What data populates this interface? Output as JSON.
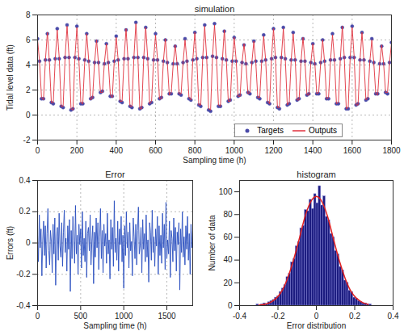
{
  "chart_data": [
    {
      "type": "line",
      "title": "simulation",
      "x_label": "Sampling time (h)",
      "y_label": "Tidal level data (ft)",
      "x": [
        0,
        10,
        20,
        30,
        40,
        50,
        60,
        70,
        80,
        90,
        100,
        110,
        120,
        130,
        140,
        150,
        160,
        170,
        180,
        190,
        200,
        210,
        220,
        230,
        240,
        250,
        260,
        270,
        280,
        290,
        300,
        310,
        320,
        330,
        340,
        350,
        360,
        370,
        380,
        390,
        400,
        410,
        420,
        430,
        440,
        450,
        460,
        470,
        480,
        490,
        500,
        510,
        520,
        530,
        540,
        550,
        560,
        570,
        580,
        590,
        600,
        610,
        620,
        630,
        640,
        650,
        660,
        670,
        680,
        690,
        700,
        710,
        720,
        730,
        740,
        750,
        760,
        770,
        780,
        790,
        800,
        810,
        820,
        830,
        840,
        850,
        860,
        870,
        880,
        890,
        900,
        910,
        920,
        930,
        940,
        950,
        960,
        970,
        980,
        990,
        1000,
        1010,
        1020,
        1030,
        1040,
        1050,
        1060,
        1070,
        1080,
        1090,
        1100,
        1110,
        1120,
        1130,
        1140,
        1150,
        1160,
        1170,
        1180,
        1190,
        1200,
        1210,
        1220,
        1230,
        1240,
        1250,
        1260,
        1270,
        1280,
        1290,
        1300,
        1310,
        1320,
        1330,
        1340,
        1350,
        1360,
        1370,
        1380,
        1390,
        1400,
        1410,
        1420,
        1430,
        1440,
        1450,
        1460,
        1470,
        1480,
        1490,
        1500,
        1510,
        1520,
        1530,
        1540,
        1550,
        1560,
        1570,
        1580,
        1590,
        1600,
        1610,
        1620,
        1630,
        1640,
        1650,
        1660,
        1670,
        1680,
        1690,
        1700,
        1710,
        1720,
        1730,
        1740,
        1750,
        1760,
        1770,
        1780,
        1790,
        1800
      ],
      "series": [
        {
          "name": "Targets",
          "type": "scatter",
          "marker": "circle",
          "color": "#4a4aa8",
          "values": [
            6.1,
            4.3,
            1.3,
            1.3,
            4.4,
            6.5,
            4.4,
            1.0,
            0.9,
            4.5,
            6.9,
            4.5,
            0.7,
            0.6,
            4.6,
            7.2,
            4.6,
            0.4,
            0.5,
            4.6,
            7.1,
            4.5,
            0.9,
            0.9,
            4.4,
            6.5,
            4.3,
            1.3,
            1.4,
            4.2,
            5.9,
            4.2,
            1.8,
            1.9,
            4.1,
            5.7,
            4.2,
            1.5,
            1.5,
            4.3,
            6.3,
            4.4,
            1.1,
            1.0,
            4.5,
            6.8,
            4.5,
            0.7,
            0.6,
            4.6,
            7.4,
            4.6,
            0.5,
            0.6,
            4.6,
            7.0,
            4.5,
            0.9,
            1.0,
            4.4,
            6.5,
            4.4,
            1.3,
            1.4,
            4.3,
            6.0,
            4.2,
            1.7,
            1.7,
            4.1,
            5.5,
            4.1,
            1.7,
            1.6,
            4.2,
            6.1,
            4.3,
            1.3,
            1.2,
            4.4,
            6.6,
            4.5,
            0.8,
            0.7,
            4.6,
            7.2,
            4.6,
            0.4,
            0.3,
            4.7,
            7.3,
            4.6,
            0.7,
            0.7,
            4.5,
            6.7,
            4.4,
            1.1,
            1.2,
            4.3,
            6.2,
            4.3,
            1.5,
            1.6,
            4.2,
            5.6,
            4.1,
            1.8,
            1.7,
            4.2,
            5.9,
            4.3,
            1.4,
            1.3,
            4.3,
            6.4,
            4.4,
            1.0,
            0.9,
            4.5,
            6.9,
            4.6,
            0.6,
            0.5,
            4.6,
            7.0,
            4.5,
            0.8,
            0.9,
            4.4,
            6.6,
            4.4,
            1.2,
            1.3,
            4.3,
            6.1,
            4.3,
            1.6,
            1.7,
            4.2,
            5.7,
            4.1,
            1.7,
            1.7,
            4.2,
            6.0,
            4.3,
            1.3,
            1.3,
            4.4,
            6.5,
            4.4,
            0.9,
            0.9,
            4.5,
            7.0,
            4.6,
            0.5,
            0.5,
            4.6,
            7.1,
            4.6,
            0.8,
            0.9,
            4.4,
            6.6,
            4.4,
            1.2,
            1.3,
            4.3,
            6.1,
            4.2,
            1.7,
            1.7,
            4.1,
            5.5,
            4.1,
            1.8,
            1.7,
            4.2,
            5.8
          ]
        },
        {
          "name": "Outputs",
          "type": "line",
          "line_style": "solid",
          "color": "#e0303c",
          "values": [
            6.0,
            4.3,
            1.4,
            1.2,
            4.4,
            6.6,
            4.3,
            1.0,
            1.0,
            4.5,
            6.8,
            4.6,
            0.7,
            0.7,
            4.6,
            7.1,
            4.7,
            0.5,
            0.4,
            4.6,
            7.0,
            4.5,
            1.0,
            0.9,
            4.3,
            6.5,
            4.4,
            1.2,
            1.4,
            4.2,
            6.0,
            4.1,
            1.8,
            1.8,
            4.2,
            5.7,
            4.2,
            1.6,
            1.4,
            4.3,
            6.2,
            4.4,
            1.1,
            1.1,
            4.5,
            6.9,
            4.4,
            0.7,
            0.7,
            4.6,
            7.3,
            4.7,
            0.5,
            0.5,
            4.6,
            7.0,
            4.6,
            0.9,
            1.1,
            4.4,
            6.4,
            4.5,
            1.3,
            1.3,
            4.3,
            6.1,
            4.2,
            1.6,
            1.8,
            4.1,
            5.6,
            4.0,
            1.7,
            1.7,
            4.2,
            6.0,
            4.3,
            1.4,
            1.2,
            4.5,
            6.6,
            4.4,
            0.8,
            0.8,
            4.6,
            7.1,
            4.6,
            0.5,
            0.4,
            4.7,
            7.2,
            4.6,
            0.8,
            0.7,
            4.4,
            6.8,
            4.4,
            1.1,
            1.1,
            4.3,
            6.2,
            4.4,
            1.5,
            1.5,
            4.2,
            5.7,
            4.1,
            1.7,
            1.8,
            4.2,
            5.9,
            4.2,
            1.4,
            1.4,
            4.3,
            6.3,
            4.4,
            1.1,
            0.9,
            4.6,
            6.9,
            4.5,
            0.6,
            0.6,
            4.6,
            6.9,
            4.5,
            0.8,
            1.0,
            4.4,
            6.5,
            4.5,
            1.2,
            1.2,
            4.3,
            6.2,
            4.3,
            1.6,
            1.6,
            4.2,
            5.7,
            4.2,
            1.7,
            1.8,
            4.2,
            6.0,
            4.2,
            1.3,
            1.4,
            4.4,
            6.4,
            4.5,
            0.9,
            1.0,
            4.5,
            7.1,
            4.6,
            0.5,
            0.6,
            4.6,
            7.0,
            4.7,
            0.8,
            0.8,
            4.4,
            6.6,
            4.3,
            1.2,
            1.4,
            4.3,
            6.0,
            4.2,
            1.7,
            1.6,
            4.1,
            5.6,
            4.1,
            1.8,
            1.8,
            4.2,
            5.7
          ]
        }
      ],
      "xlim": [
        0,
        1800
      ],
      "xticks": [
        0,
        200,
        400,
        600,
        800,
        1000,
        1200,
        1400,
        1600,
        1800
      ],
      "ylim": [
        -2,
        8
      ],
      "yticks": [
        -2,
        0,
        2,
        4,
        6,
        8
      ],
      "grid": true,
      "legend": "lower right"
    },
    {
      "type": "line",
      "title": "Error",
      "x_label": "Sampling time (h)",
      "y_label": "Errors (ft)",
      "x": [
        0,
        10,
        20,
        30,
        40,
        50,
        60,
        70,
        80,
        90,
        100,
        110,
        120,
        130,
        140,
        150,
        160,
        170,
        180,
        190,
        200,
        210,
        220,
        230,
        240,
        250,
        260,
        270,
        280,
        290,
        300,
        310,
        320,
        330,
        340,
        350,
        360,
        370,
        380,
        390,
        400,
        410,
        420,
        430,
        440,
        450,
        460,
        470,
        480,
        490,
        500,
        510,
        520,
        530,
        540,
        550,
        560,
        570,
        580,
        590,
        600,
        610,
        620,
        630,
        640,
        650,
        660,
        670,
        680,
        690,
        700,
        710,
        720,
        730,
        740,
        750,
        760,
        770,
        780,
        790,
        800,
        810,
        820,
        830,
        840,
        850,
        860,
        870,
        880,
        890,
        900,
        910,
        920,
        930,
        940,
        950,
        960,
        970,
        980,
        990,
        1000,
        1010,
        1020,
        1030,
        1040,
        1050,
        1060,
        1070,
        1080,
        1090,
        1100,
        1110,
        1120,
        1130,
        1140,
        1150,
        1160,
        1170,
        1180,
        1190,
        1200,
        1210,
        1220,
        1230,
        1240,
        1250,
        1260,
        1270,
        1280,
        1290,
        1300,
        1310,
        1320,
        1330,
        1340,
        1350,
        1360,
        1370,
        1380,
        1390,
        1400,
        1410,
        1420,
        1430,
        1440,
        1450,
        1460,
        1470,
        1480,
        1490,
        1500,
        1510,
        1520,
        1530,
        1540,
        1550,
        1560,
        1570,
        1580,
        1590,
        1600,
        1610,
        1620,
        1630,
        1640,
        1650,
        1660,
        1670,
        1680,
        1690,
        1700,
        1710,
        1720,
        1730,
        1740,
        1750,
        1760,
        1770,
        1780,
        1790,
        1800
      ],
      "values": [
        0.05,
        -0.12,
        0.18,
        -0.03,
        0.09,
        -0.21,
        0.02,
        0.14,
        -0.08,
        0.11,
        -0.16,
        0.06,
        0.22,
        -0.05,
        -0.14,
        0.08,
        0.01,
        -0.19,
        0.12,
        -0.07,
        0.16,
        -0.27,
        0.04,
        0.1,
        -0.11,
        0.19,
        -0.02,
        -0.09,
        0.13,
        -0.15,
        0.07,
        0.21,
        -0.06,
        0.03,
        -0.18,
        0.11,
        -0.04,
        0.15,
        -0.31,
        0.08,
        -0.1,
        0.17,
        0.02,
        -0.13,
        0.24,
        -0.07,
        0.05,
        -0.2,
        0.12,
        -0.01,
        0.09,
        -0.16,
        0.2,
        -0.08,
        0.03,
        -0.12,
        0.14,
        -0.22,
        0.06,
        0.1,
        -0.05,
        0.18,
        -0.14,
        0.01,
        0.11,
        -0.26,
        0.07,
        -0.09,
        0.16,
        -0.03,
        0.13,
        -0.17,
        0.04,
        0.22,
        -0.1,
        0.08,
        -0.19,
        0.12,
        -0.02,
        0.06,
        -0.13,
        0.19,
        -0.07,
        0.02,
        -0.23,
        0.15,
        -0.04,
        0.1,
        -0.15,
        0.27,
        -0.06,
        0.03,
        -0.11,
        0.14,
        -0.18,
        0.09,
        -0.01,
        0.17,
        -0.12,
        0.05,
        -0.29,
        0.11,
        -0.08,
        0.2,
        -0.03,
        0.07,
        -0.16,
        0.13,
        -0.05,
        0.01,
        -0.21,
        0.16,
        0.04,
        -0.1,
        0.12,
        -0.14,
        0.08,
        0.23,
        -0.07,
        -0.02,
        0.1,
        -0.19,
        0.15,
        -0.04,
        0.06,
        -0.12,
        0.18,
        -0.09,
        0.02,
        -0.25,
        0.13,
        0.07,
        -0.11,
        0.21,
        -0.06,
        0.04,
        -0.15,
        0.09,
        -0.02,
        0.17,
        -0.2,
        0.11,
        -0.08,
        0.05,
        -0.13,
        0.19,
        -0.03,
        0.12,
        -0.17,
        0.26,
        -0.1,
        0.02,
        -0.07,
        0.14,
        -0.22,
        0.08,
        0.03,
        -0.12,
        0.16,
        -0.05,
        0.1,
        -0.18,
        0.07,
        -0.01,
        0.13,
        -0.3,
        0.09,
        -0.06,
        0.2,
        -0.09,
        0.04,
        -0.14,
        0.11,
        -0.04,
        0.17,
        -0.11,
        0.06,
        -0.2,
        0.12,
        -0.03,
        0.08
      ],
      "color": "#2a4fc0",
      "xlim": [
        0,
        1800
      ],
      "xticks": [
        0,
        500,
        1000,
        1500
      ],
      "ylim": [
        -0.4,
        0.4
      ],
      "yticks": [
        -0.4,
        -0.2,
        0,
        0.2,
        0.4
      ],
      "grid": true
    },
    {
      "type": "histogram",
      "title": "histogram",
      "x_label": "Error distribution",
      "y_label": "Number of data",
      "bins": [
        -0.312,
        -0.3,
        -0.288,
        -0.276,
        -0.264,
        -0.252,
        -0.24,
        -0.228,
        -0.216,
        -0.204,
        -0.192,
        -0.18,
        -0.168,
        -0.156,
        -0.144,
        -0.132,
        -0.12,
        -0.108,
        -0.096,
        -0.084,
        -0.072,
        -0.06,
        -0.048,
        -0.036,
        -0.024,
        -0.012,
        0,
        0.012,
        0.024,
        0.036,
        0.048,
        0.06,
        0.072,
        0.084,
        0.096,
        0.108,
        0.12,
        0.132,
        0.144,
        0.156,
        0.168,
        0.18,
        0.192,
        0.204,
        0.216,
        0.228,
        0.24,
        0.252,
        0.264,
        0.276,
        0.288
      ],
      "counts": [
        1,
        0,
        1,
        2,
        1,
        3,
        4,
        5,
        7,
        8,
        12,
        15,
        18,
        25,
        28,
        38,
        41,
        52,
        56,
        68,
        70,
        84,
        83,
        93,
        85,
        98,
        90,
        105,
        88,
        96,
        78,
        75,
        63,
        60,
        48,
        45,
        34,
        31,
        22,
        20,
        13,
        12,
        7,
        6,
        4,
        3,
        2,
        2,
        1,
        1
      ],
      "color": "#1c1c80",
      "fit": {
        "type": "line",
        "color": "#e02020",
        "x": [
          -0.3,
          -0.27,
          -0.24,
          -0.21,
          -0.18,
          -0.15,
          -0.12,
          -0.09,
          -0.06,
          -0.03,
          0,
          0.03,
          0.06,
          0.09,
          0.12,
          0.15,
          0.18,
          0.21,
          0.24,
          0.27
        ],
        "values": [
          0.4,
          1.1,
          2.8,
          6.3,
          12.7,
          24,
          39.4,
          58,
          77.5,
          91,
          96,
          91,
          77.5,
          58,
          39.4,
          24,
          12.7,
          6.3,
          2.8,
          1.1
        ]
      },
      "xlim": [
        -0.4,
        0.4
      ],
      "xticks": [
        -0.4,
        -0.2,
        0,
        0.2,
        0.4
      ],
      "ylim": [
        0,
        110
      ],
      "yticks": [
        0,
        20,
        40,
        60,
        80,
        100
      ]
    }
  ]
}
